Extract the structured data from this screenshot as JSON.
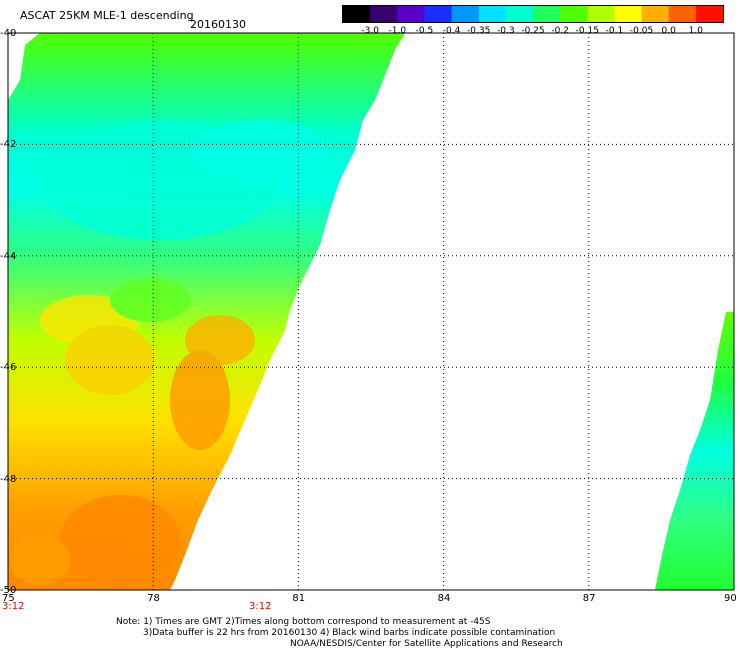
{
  "header": {
    "title": "ASCAT 25KM MLE-1 descending",
    "date": "20160130"
  },
  "colorbar": {
    "labels": [
      "-3.0",
      "-1.0",
      "-0.5",
      "-0.4",
      "-0.35",
      "-0.3",
      "-0.25",
      "-0.2",
      "-0.15",
      "-0.1",
      "-0.05",
      "0.0",
      "1.0"
    ],
    "colors": [
      "#000000",
      "#3a0070",
      "#5a00c8",
      "#1830ff",
      "#0098ff",
      "#00e0ff",
      "#00ffd0",
      "#20ff60",
      "#50ff00",
      "#b0ff00",
      "#ffff00",
      "#ffb000",
      "#ff6000",
      "#ff1000"
    ]
  },
  "map": {
    "lon_ticks": [
      "75",
      "78",
      "81",
      "84",
      "87",
      "90"
    ],
    "lat_ticks": [
      "-40",
      "-42",
      "-44",
      "-46",
      "-48",
      "-50"
    ],
    "time_labels": [
      "3:12",
      "3:12"
    ],
    "lon_range": [
      75,
      90
    ],
    "lat_range": [
      -50,
      -40
    ]
  },
  "notes": {
    "line1": "Note: 1) Times are GMT 2)Times along bottom correspond to measurement at -45S",
    "line2": "3)Data buffer is 22 hrs from 20160130 4) Black wind barbs indicate possible contamination",
    "line3": "NOAA/NESDIS/Center for Satellite Applications and Research"
  }
}
